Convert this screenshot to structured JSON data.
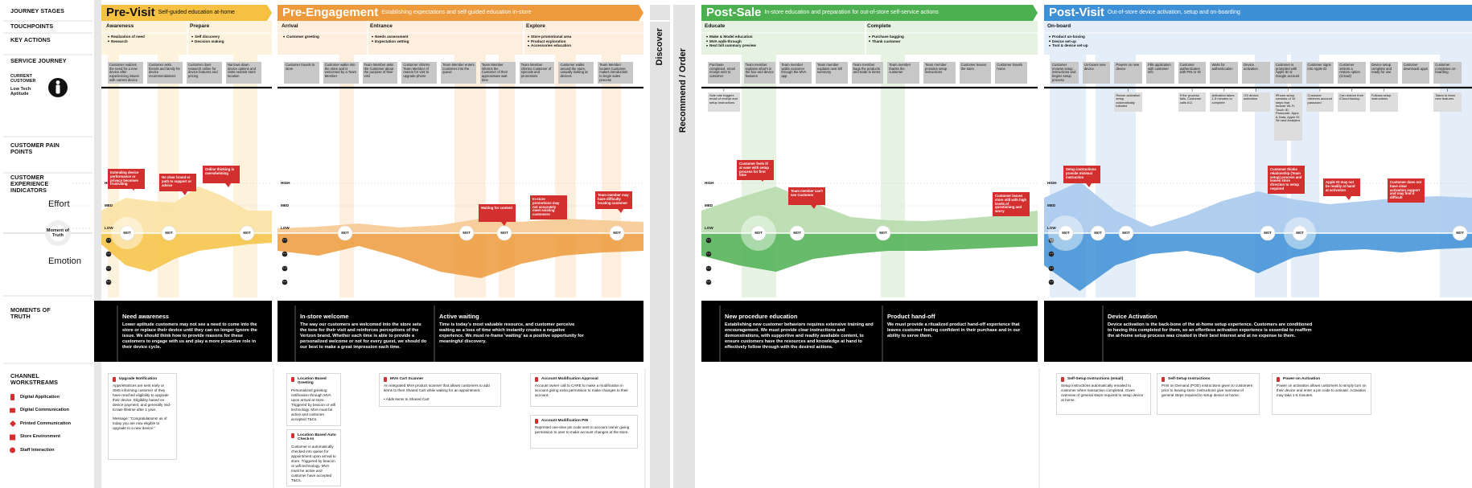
{
  "labels": {
    "journey_stages": "JOURNEY STAGES",
    "touchpoints": "TOUCHPOINTS",
    "key_actions": "KEY ACTIONS",
    "service_journey": "SERVICE JOURNEY",
    "current_customer": "CURRENT CUSTOMER",
    "aptitude": "Low Tech Aptitude",
    "pain_points": "CUSTOMER PAIN POINTS",
    "indicators": "CUSTOMER EXPERIENCE INDICATORS",
    "effort": "Effort",
    "moment": "Moment of Truth",
    "emotion": "Emotion",
    "moments_of_truth": "MOMENTS OF TRUTH",
    "channel_workstreams": "CHANNEL WORKSTREAMS"
  },
  "legend": [
    "Digital Application",
    "Digital Communication",
    "Printed Communication",
    "Store Environment",
    "Staff Interaction"
  ],
  "levels": [
    "HIGH",
    "MED",
    "LOW"
  ],
  "middle": {
    "top": "Discover",
    "bottom": "Recommend / Order"
  },
  "stages": [
    {
      "title": "Pre-Visit",
      "subtitle": "Self-guided education at-home",
      "color": "#f6c142",
      "light": "#fbe2a3",
      "tint": "#fdf3dc",
      "touchpoints": [
        {
          "name": "Awareness",
          "actions": [
            "Realization of need",
            "Research"
          ]
        },
        {
          "name": "Prepare",
          "actions": [
            "Self discovery",
            "Decision making"
          ]
        }
      ],
      "journey": [
        "Customer realizes the need for a new device after experiencing issues with current device",
        "Customer asks friends and family for device recommendations",
        "Customer does research online for device features and pricing",
        "Narrows down device options and visits nearest store location"
      ],
      "notes": [],
      "pain": [
        "Extending device performance or privacy becomes frustrating",
        "No clear brand or path to support or advice",
        "Online thinking is overwhelming"
      ],
      "mot": [
        "MOT",
        "MOT",
        "MOT"
      ],
      "moments": [
        {
          "title": "Need awareness",
          "text": "Lower aptitude customers may not see a need to come into the store or replace their device until they can no longer ignore the issue. We should think how to provide reasons for these customers to engage with us and play a more proactive role in their device cycle."
        }
      ],
      "channels": [
        {
          "title": "Upgrade Notification",
          "text": "Apps/eNotices are sent early or SMS informing customer of they have reached eligibility to upgrade their device. Eligibility based on device payment, and generally mid-to-late lifetime after 1 year.",
          "extra": "Message: \"Congratulations! as of today you are now eligible to upgrade to a new device.\""
        }
      ]
    },
    {
      "title": "Pre-Engagement",
      "subtitle": "Establishing expectations and self-guided education in-store",
      "color": "#ec9a3c",
      "light": "#f6c991",
      "tint": "#fdeedd",
      "touchpoints": [
        {
          "name": "Arrival",
          "actions": [
            "Customer greeting"
          ]
        },
        {
          "name": "Entrance",
          "actions": [
            "Needs assessment",
            "Expectation setting"
          ]
        },
        {
          "name": "Explore",
          "actions": [
            "Store promotional area",
            "Product exploration",
            "Accessories education"
          ]
        }
      ],
      "journey": [
        "Customer travels to store",
        "Customer walks into the store and is welcomed by a Team Member",
        "Team Member asks the Customer about the purpose of their visit",
        "Customer informs Team Member of reason for visit to upgrade phone",
        "Team Member enters Customer into the queue",
        "Team Member informs the Customer of their approximate wait time",
        "Team Member informs Customer of specials and promotions",
        "Customer walks around the store, casually looking at devices",
        "Team Member locates Customer, makes introduction to begin sales process"
      ],
      "notes": [],
      "pain": [
        "Waiting for content",
        "In-store promotions may not accurately meet existing customers",
        "Team member may have difficulty locating customer"
      ],
      "mot": [
        "MOT",
        "MOT",
        "MOT",
        "MOT"
      ],
      "moments": [
        {
          "title": "In-store welcome",
          "text": "The way our customers are welcomed into the store sets the tone for their visit and reinforces perceptions of the Verizon brand. Whether each time is able to provide a personalized welcome or not for every guest, we should do our best to make a great impression each time."
        },
        {
          "title": "Active waiting",
          "text": "Time is today's most valuable resource, and customer perceive waiting as a loss of time which instantly creates a negative experience. We must re-frame 'waiting' as a positive opportunity for meaningful discovery."
        }
      ],
      "channels": [
        {
          "title": "Location Based Greeting",
          "text": "Personalized greeting notification through MVA upon arrival at store. Triggered by beacon or wifi technology. MVA must be active and customer accepted T&Cs."
        },
        {
          "title": "Location Based Auto Check-In",
          "text": "Customer is automatically checked into queue for appointment upon arrival to store. Triggered by beacon or wifi technology. MVA must be active and customer have accepted T&Cs."
        },
        {
          "title": "MVA Cart Scanner",
          "text": "An integrated MVA product scanner that allows customers to add items to their Shared Cart while waiting for an appointment.",
          "extra": "• Adds items to Shared Cart"
        },
        {
          "title": "Account Modification Approval",
          "text": "Account owner call to CARE to make a modification in account giving extra permission to make changes to their account."
        },
        {
          "title": "Account Modification PIN",
          "text": "Reprinted one-time pin code sent to account owner giving permission to user to make account changes at the store."
        }
      ]
    },
    {
      "title": "Post-Sale",
      "subtitle": "In-store education and preparation for out-of-store self-service actions",
      "color": "#4caf50",
      "light": "#b7dbad",
      "tint": "#e6f3e2",
      "touchpoints": [
        {
          "name": "Educate",
          "actions": [
            "Make & Model education",
            "MVA walk-through",
            "Next bill summary preview"
          ]
        },
        {
          "name": "Complete",
          "actions": [
            "Purchase bagging",
            "Thank customer"
          ]
        }
      ],
      "journey": [
        "Purchase completed, email receipt sent to customer",
        "Team member explains what's in the box and device features",
        "Team member walks customer through the MVA app",
        "Team member explains next bill summary",
        "Team member bags the products and trade-in items",
        "Team member thanks the customer",
        "Team member provides setup instructions",
        "Customer leaves the store",
        "Customer travels home"
      ],
      "notes": [
        "Sale rate triggers email of receipt and setup instructions"
      ],
      "pain": [
        "Customer feels ill at ease with setup process for first time",
        "Team member can't see Customer",
        "Customer leaves store still with high levels of questioning and worry"
      ],
      "mot": [
        "MOT",
        "MOT",
        "MOT"
      ],
      "moments": [
        {
          "title": "New procedure education",
          "text": "Establishing new customer behaviors requires extensive training and encouragement. We must provide clear instructions and demonstrations, with supportive and readily available content, to ensure customers have the resources and knowledge at hand to effectively follow through with the desired actions."
        },
        {
          "title": "Product hand-off",
          "text": "We must provide a ritualized product hand-off experience that leaves customer feeling confident in their purchase and in our ability to serve them."
        }
      ],
      "channels": []
    },
    {
      "title": "Post-Visit",
      "subtitle": "Out-of-store device activation, setup and on-boarding",
      "color": "#3d8fd6",
      "light": "#a9c9ed",
      "tint": "#e3eef9",
      "touchpoints": [
        {
          "name": "On-board",
          "actions": [
            "Product un-boxing",
            "Device set-up",
            "Tool & device set-up"
          ]
        }
      ],
      "journey": [
        "Customer reviews setup instructions and begins setup process",
        "Un-boxes new device",
        "Powers on new device",
        "Fills application with customer info",
        "Customer authenticates with PIN or ID",
        "Waits for authentication",
        "Device activation",
        "Customer is prompted with Apple ID or Google account",
        "Customer signs into Apple ID",
        "Customer selects a restore option (iCloud)",
        "Device setup complete and ready for use",
        "Customer downloads apps",
        "Customer completes on-boarding"
      ],
      "notes": [
        "Return activation setup automatically initiated",
        "If the process fails, Customer calls 611",
        "Activation takes 1-5 minutes to complete",
        "OS device activation",
        "iPhone setup consists of 16 steps that include Wi-Fi, Touch ID, Passcode, Apps & Data, Apple ID, Siri and Analytics",
        "Customer retrieves account password",
        "Can restore from iCloud backup",
        "Follows setup instructions",
        "Takes to learn new features"
      ],
      "pain": [
        "Setup instructions provide minimal instruction",
        "Customer thinks relationship (Team setup) process and leaves store direction to setup required",
        "Apple ID may not be readily at hand at activation",
        "Customer does not have clear activation support and may find it difficult"
      ],
      "mot": [
        "MOT",
        "MOT",
        "MOT",
        "MOT",
        "MOT",
        "MOT"
      ],
      "moments": [
        {
          "title": "Device Activation",
          "text": "Device activation is the back-bone of the at-home setup experience. Customers are conditioned to having this completed for them, so an effortless activation experience is essential to reaffirm the at-home setup process was created in their best interest and at no expense to them."
        }
      ],
      "channels": [
        {
          "title": "Self-Setup Instructions (email)",
          "text": "Setup instructions automatically emailed to customer when transaction completed. Gives overview of general steps required to setup device at home."
        },
        {
          "title": "Self-Setup Instructions",
          "text": "Print on Demand (POD) instructions given to customers prior to leaving store. Instructions give overview of general steps required to setup device at home."
        },
        {
          "title": "Power-on Activation",
          "text": "Power on activation allows customers to simply turn on their device and enter a pin code to activate. Activation may take 1-5 minutes."
        }
      ]
    }
  ]
}
